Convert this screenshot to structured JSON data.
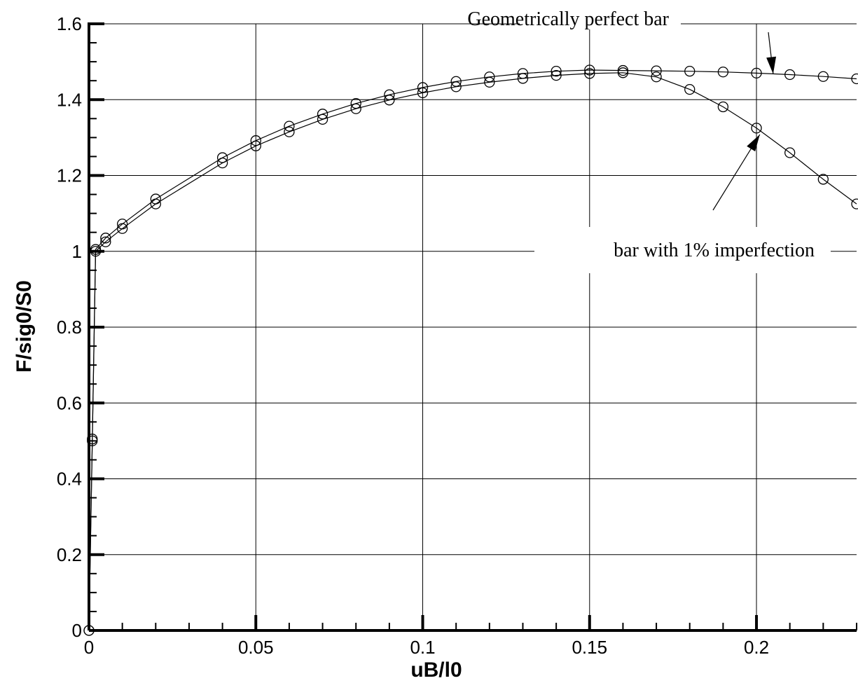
{
  "chart_data": {
    "type": "line",
    "xlabel": "uB/l0",
    "ylabel": "F/sig0/S0",
    "xlim": [
      0,
      0.23
    ],
    "ylim": [
      0,
      1.6
    ],
    "x_ticks": [
      0,
      0.05,
      0.1,
      0.15,
      0.2
    ],
    "x_tick_labels": [
      "0",
      "0.05",
      "0.1",
      "0.15",
      "0.2"
    ],
    "y_ticks": [
      0,
      0.2,
      0.4,
      0.6,
      0.8,
      1.0,
      1.2,
      1.4,
      1.6
    ],
    "y_tick_labels": [
      "0",
      "0.2",
      "0.4",
      "0.6",
      "0.8",
      "1",
      "1.2",
      "1.4",
      "1.6"
    ],
    "grid": true,
    "marker": "open-circle",
    "series": [
      {
        "name": "Geometrically perfect bar",
        "x": [
          0,
          0.001,
          0.002,
          0.005,
          0.01,
          0.02,
          0.04,
          0.05,
          0.06,
          0.07,
          0.08,
          0.09,
          0.1,
          0.11,
          0.12,
          0.13,
          0.14,
          0.15,
          0.16,
          0.17,
          0.18,
          0.19,
          0.2,
          0.21,
          0.22,
          0.23
        ],
        "y": [
          0,
          0.505,
          1.005,
          1.035,
          1.072,
          1.138,
          1.247,
          1.292,
          1.33,
          1.362,
          1.39,
          1.413,
          1.432,
          1.448,
          1.46,
          1.469,
          1.475,
          1.478,
          1.477,
          1.476,
          1.475,
          1.473,
          1.47,
          1.466,
          1.461,
          1.455
        ]
      },
      {
        "name": "bar with 1% imperfection",
        "x": [
          0,
          0.001,
          0.002,
          0.005,
          0.01,
          0.02,
          0.04,
          0.05,
          0.06,
          0.07,
          0.08,
          0.09,
          0.1,
          0.11,
          0.12,
          0.13,
          0.14,
          0.15,
          0.16,
          0.17,
          0.18,
          0.19,
          0.2,
          0.21,
          0.22,
          0.23
        ],
        "y": [
          0,
          0.5,
          1.0,
          1.025,
          1.06,
          1.125,
          1.233,
          1.278,
          1.315,
          1.348,
          1.376,
          1.399,
          1.418,
          1.434,
          1.446,
          1.456,
          1.464,
          1.469,
          1.471,
          1.46,
          1.427,
          1.381,
          1.325,
          1.26,
          1.19,
          1.125
        ]
      }
    ],
    "annotations": [
      {
        "text": "Geometrically perfect bar",
        "series": 0,
        "arrow_to": [
          0.205,
          1.468
        ]
      },
      {
        "text": "bar with 1% imperfection",
        "series": 1,
        "arrow_to": [
          0.201,
          1.308
        ]
      }
    ]
  }
}
